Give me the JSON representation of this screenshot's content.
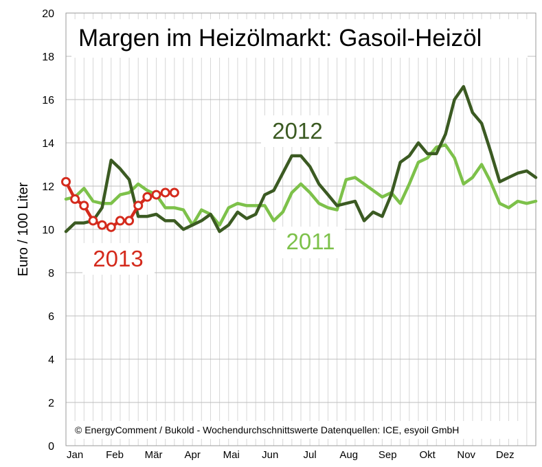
{
  "chart_data": {
    "type": "line",
    "title": "Margen im Heizölmarkt: Gasoil-Heizöl",
    "ylabel": "Euro / 100 Liter",
    "xlabel": "",
    "ylim": [
      0,
      20
    ],
    "yticks": [
      0,
      2,
      4,
      6,
      8,
      10,
      12,
      14,
      16,
      18,
      20
    ],
    "xlim": [
      1,
      53
    ],
    "month_ticks": [
      {
        "label": "Jan",
        "week": 2
      },
      {
        "label": "Feb",
        "week": 6.4
      },
      {
        "label": "Mär",
        "week": 10.7
      },
      {
        "label": "Apr",
        "week": 15
      },
      {
        "label": "Mai",
        "week": 19.3
      },
      {
        "label": "Jun",
        "week": 23.6
      },
      {
        "label": "Jul",
        "week": 28
      },
      {
        "label": "Aug",
        "week": 32.3
      },
      {
        "label": "Sep",
        "week": 36.6
      },
      {
        "label": "Okt",
        "week": 41
      },
      {
        "label": "Nov",
        "week": 45.3
      },
      {
        "label": "Dez",
        "week": 49.6
      }
    ],
    "grid": true,
    "source": "© EnergyComment / Bukold - Wochendurchschnittswerte Datenquellen: ICE, esyoil GmbH",
    "series": [
      {
        "name": "2011",
        "color": "#7dc14a",
        "marker": "none",
        "x": [
          1,
          2,
          3,
          4,
          5,
          6,
          7,
          8,
          9,
          10,
          11,
          12,
          13,
          14,
          15,
          16,
          17,
          18,
          19,
          20,
          21,
          22,
          23,
          24,
          25,
          26,
          27,
          28,
          29,
          30,
          31,
          32,
          33,
          34,
          35,
          36,
          37,
          38,
          39,
          40,
          41,
          42,
          43,
          44,
          45,
          46,
          47,
          48,
          49,
          50,
          51,
          52,
          53
        ],
        "values": [
          11.4,
          11.5,
          11.9,
          11.3,
          11.2,
          11.2,
          11.6,
          11.7,
          12.1,
          11.8,
          11.6,
          11.0,
          11.0,
          10.9,
          10.2,
          10.9,
          10.7,
          10.2,
          11.0,
          11.2,
          11.1,
          11.1,
          11.1,
          10.4,
          10.8,
          11.7,
          12.1,
          11.7,
          11.2,
          11.0,
          10.9,
          12.3,
          12.4,
          12.1,
          11.8,
          11.5,
          11.7,
          11.2,
          12.1,
          13.1,
          13.3,
          13.8,
          13.9,
          13.3,
          12.1,
          12.4,
          13.0,
          12.2,
          11.2,
          11.0,
          11.3,
          11.2,
          11.3
        ]
      },
      {
        "name": "2012",
        "color": "#3b5a22",
        "marker": "none",
        "x": [
          1,
          2,
          3,
          4,
          5,
          6,
          7,
          8,
          9,
          10,
          11,
          12,
          13,
          14,
          15,
          16,
          17,
          18,
          19,
          20,
          21,
          22,
          23,
          24,
          25,
          26,
          27,
          28,
          29,
          30,
          31,
          32,
          33,
          34,
          35,
          36,
          37,
          38,
          39,
          40,
          41,
          42,
          43,
          44,
          45,
          46,
          47,
          48,
          49,
          50,
          51,
          52,
          53
        ],
        "values": [
          9.9,
          10.3,
          10.3,
          10.4,
          11.0,
          13.2,
          12.8,
          12.3,
          10.6,
          10.6,
          10.7,
          10.4,
          10.4,
          10.0,
          10.2,
          10.4,
          10.7,
          9.9,
          10.2,
          10.8,
          10.5,
          10.7,
          11.6,
          11.8,
          12.6,
          13.4,
          13.4,
          12.9,
          12.1,
          11.6,
          11.1,
          11.2,
          11.3,
          10.4,
          10.8,
          10.6,
          11.6,
          13.1,
          13.4,
          14.0,
          13.5,
          13.5,
          14.4,
          16.0,
          16.6,
          15.4,
          14.9,
          13.6,
          12.2,
          12.4,
          12.6,
          12.7,
          12.4
        ]
      },
      {
        "name": "2013",
        "color": "#d42a1c",
        "marker": "circle",
        "x": [
          1,
          2,
          3,
          4,
          5,
          6,
          7,
          8,
          9,
          10,
          11,
          12,
          13
        ],
        "values": [
          12.2,
          11.4,
          11.1,
          10.4,
          10.2,
          10.1,
          10.4,
          10.4,
          11.1,
          11.5,
          11.6,
          11.7,
          11.7
        ]
      }
    ],
    "series_label_positions": "2012 above mid-year peak, 2011 center-right below lines, 2013 lower left"
  }
}
